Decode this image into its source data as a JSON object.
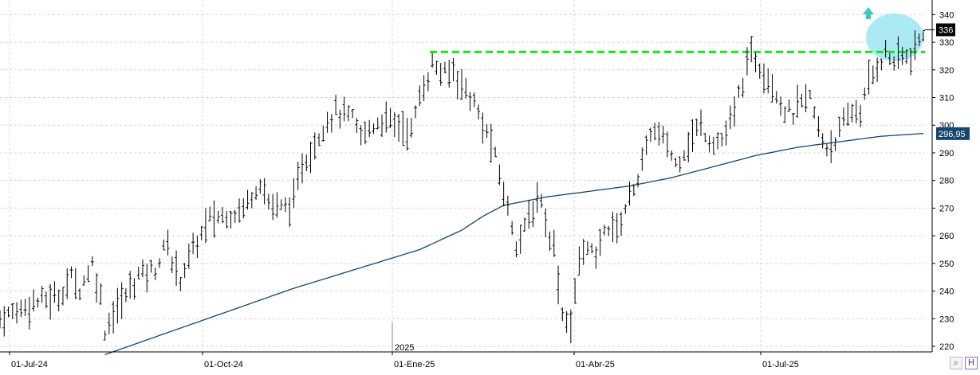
{
  "chart_data": {
    "type": "line",
    "price_series_style": "ohlc-bar",
    "grid": "dashed-both",
    "y_axis_side": "right",
    "ylim": [
      215,
      340
    ],
    "y_ticks": [
      220,
      230,
      240,
      250,
      260,
      270,
      280,
      290,
      300,
      310,
      320,
      330,
      340
    ],
    "x_tick_labels": [
      "01-Jul-24",
      "01-Oct-24",
      "01-Ene-25",
      "01-Abr-25",
      "01-Jul-25"
    ],
    "year_marker": "2025",
    "last_price_label": "336",
    "moving_average_label": "296,95",
    "resistance_level": 326.5,
    "price_waypoints": [
      [
        0,
        230
      ],
      [
        8,
        236
      ],
      [
        14,
        238
      ],
      [
        17,
        245
      ],
      [
        19,
        241
      ],
      [
        22,
        250
      ],
      [
        24,
        238
      ],
      [
        25,
        226
      ],
      [
        27,
        232
      ],
      [
        29,
        236
      ],
      [
        33,
        246
      ],
      [
        37,
        248
      ],
      [
        40,
        258
      ],
      [
        41,
        250
      ],
      [
        43,
        245
      ],
      [
        46,
        255
      ],
      [
        50,
        266
      ],
      [
        55,
        268
      ],
      [
        58,
        270
      ],
      [
        62,
        280
      ],
      [
        64,
        272
      ],
      [
        67,
        270
      ],
      [
        70,
        272
      ],
      [
        72,
        286
      ],
      [
        74,
        290
      ],
      [
        77,
        300
      ],
      [
        80,
        305
      ],
      [
        84,
        302
      ],
      [
        86,
        296
      ],
      [
        89,
        300
      ],
      [
        91,
        302
      ],
      [
        95,
        300
      ],
      [
        98,
        298
      ],
      [
        100,
        310
      ],
      [
        103,
        322
      ],
      [
        106,
        318
      ],
      [
        108,
        320
      ],
      [
        110,
        315
      ],
      [
        113,
        308
      ],
      [
        115,
        300
      ],
      [
        117,
        294
      ],
      [
        119,
        282
      ],
      [
        121,
        270
      ],
      [
        123,
        258
      ],
      [
        125,
        262
      ],
      [
        127,
        270
      ],
      [
        129,
        274
      ],
      [
        130,
        265
      ],
      [
        132,
        256
      ],
      [
        134,
        232
      ],
      [
        136,
        228
      ],
      [
        138,
        250
      ],
      [
        140,
        258
      ],
      [
        142,
        250
      ],
      [
        143,
        258
      ],
      [
        145,
        264
      ],
      [
        147,
        262
      ],
      [
        149,
        270
      ],
      [
        151,
        278
      ],
      [
        153,
        285
      ],
      [
        155,
        298
      ],
      [
        157,
        296
      ],
      [
        159,
        293
      ],
      [
        161,
        286
      ],
      [
        163,
        291
      ],
      [
        165,
        296
      ],
      [
        167,
        300
      ],
      [
        169,
        295
      ],
      [
        171,
        294
      ],
      [
        173,
        296
      ],
      [
        175,
        305
      ],
      [
        177,
        316
      ],
      [
        179,
        326
      ],
      [
        181,
        322
      ],
      [
        183,
        318
      ],
      [
        185,
        312
      ],
      [
        187,
        305
      ],
      [
        189,
        304
      ],
      [
        191,
        308
      ],
      [
        193,
        310
      ],
      [
        195,
        298
      ],
      [
        197,
        292
      ],
      [
        199,
        295
      ],
      [
        201,
        300
      ],
      [
        203,
        305
      ],
      [
        205,
        305
      ],
      [
        207,
        315
      ],
      [
        209,
        322
      ],
      [
        211,
        326
      ],
      [
        213,
        323
      ],
      [
        215,
        325
      ],
      [
        217,
        324
      ],
      [
        219,
        330
      ],
      [
        220,
        334
      ]
    ],
    "moving_average_waypoints": [
      [
        25,
        217
      ],
      [
        40,
        225
      ],
      [
        55,
        233
      ],
      [
        70,
        241
      ],
      [
        85,
        248
      ],
      [
        100,
        255
      ],
      [
        110,
        262
      ],
      [
        115,
        267
      ],
      [
        120,
        271
      ],
      [
        130,
        274
      ],
      [
        140,
        276
      ],
      [
        150,
        278
      ],
      [
        160,
        281
      ],
      [
        170,
        285
      ],
      [
        180,
        289
      ],
      [
        190,
        292
      ],
      [
        200,
        294
      ],
      [
        210,
        296
      ],
      [
        220,
        297
      ]
    ],
    "highlight_circle": {
      "color": "#8fe3f2"
    },
    "breakout_arrow": {
      "direction": "up",
      "color": "#3cc8c0"
    },
    "colors": {
      "bars": "#000000",
      "moving_average": "#16466e",
      "resistance": "#1fe01f",
      "last_price_box": "#000000",
      "ma_box": "#16466e",
      "grid": "#d4d4d4"
    }
  },
  "ui": {
    "zoom_icon": "magnifier-icon",
    "save_icon": "floppy-disk-icon",
    "zoom_glyph": "⌕",
    "save_glyph": "H"
  }
}
